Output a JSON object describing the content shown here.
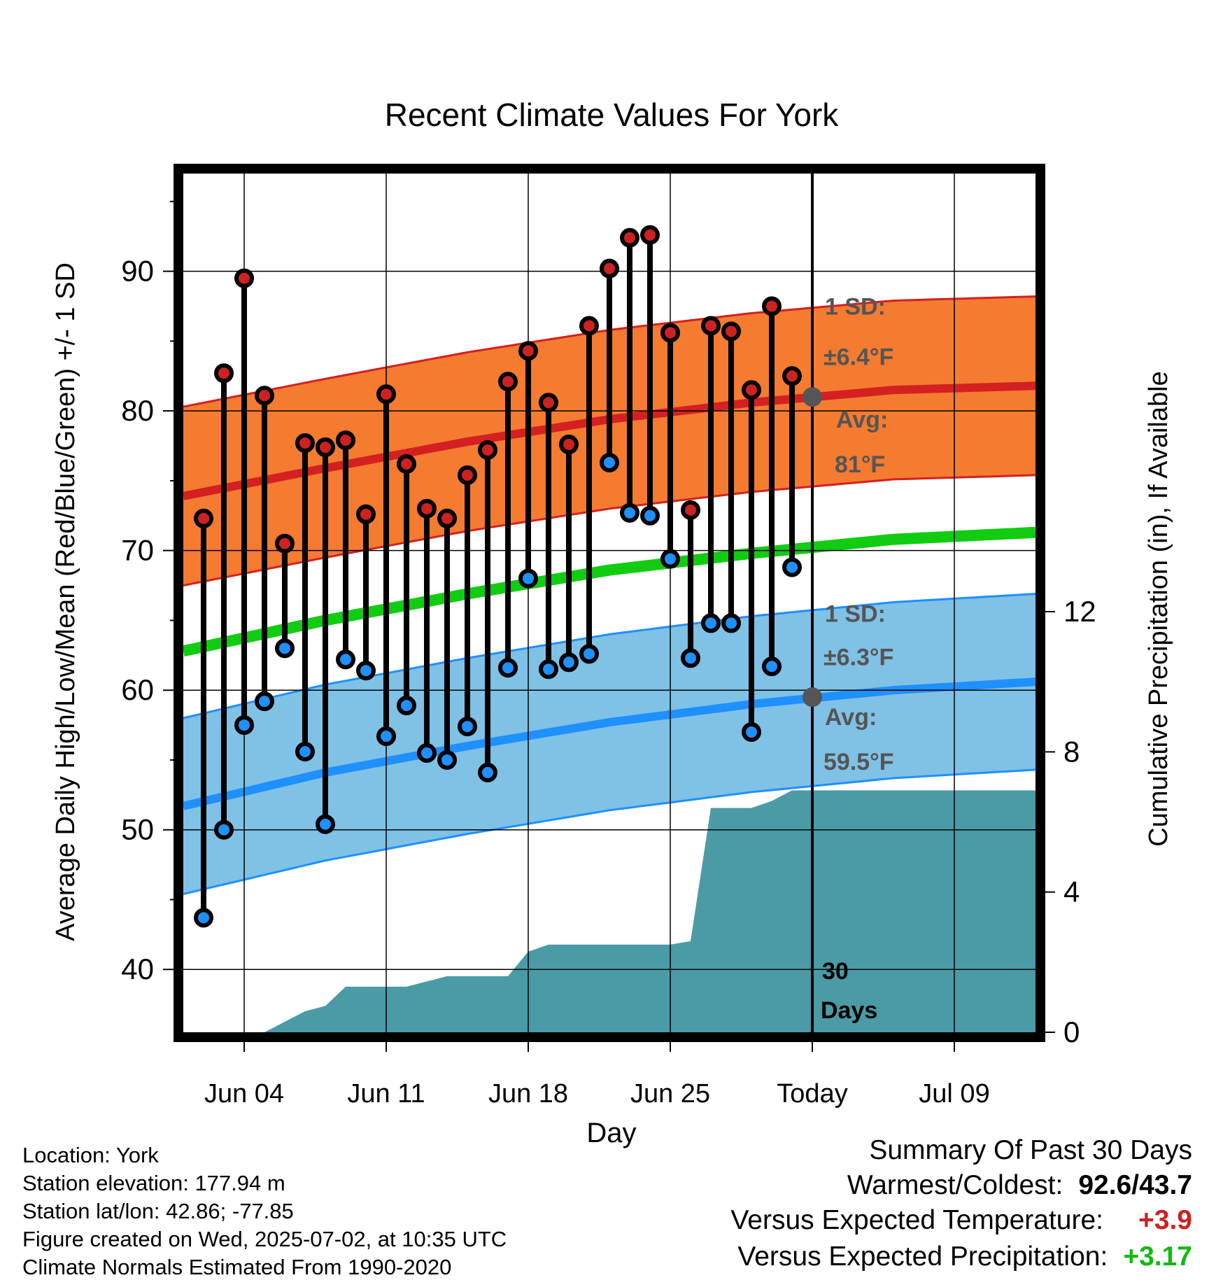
{
  "chart_data": {
    "type": "line",
    "title": "Recent Climate Values For York",
    "xlabel": "Day",
    "ylabel": "Average Daily High/Low/Mean (Red/Blue/Green) +/- 1 SD",
    "y2label": "Cumulative Precipitation (in), If Available",
    "x_range_days": [
      0,
      42
    ],
    "ylim": [
      35.5,
      97
    ],
    "y2lim": [
      0,
      24.5
    ],
    "x_ticks": [
      {
        "day": 3,
        "label": "Jun 04"
      },
      {
        "day": 10,
        "label": "Jun 11"
      },
      {
        "day": 17,
        "label": "Jun 18"
      },
      {
        "day": 24,
        "label": "Jun 25"
      },
      {
        "day": 31,
        "label": "Today"
      },
      {
        "day": 38,
        "label": "Jul 09"
      }
    ],
    "y_ticks": [
      40,
      50,
      60,
      70,
      80,
      90
    ],
    "y_ticks_labels": [
      "40",
      "50",
      "60",
      "70",
      "80",
      "90"
    ],
    "y2_ticks": [
      0,
      4,
      8,
      12
    ],
    "y2_ticks_labels": [
      "0",
      "4",
      "8",
      "12"
    ],
    "grid": true,
    "today_day": 31,
    "days": [
      1,
      2,
      3,
      4,
      5,
      6,
      7,
      8,
      9,
      10,
      11,
      12,
      13,
      14,
      15,
      16,
      17,
      18,
      19,
      20,
      21,
      22,
      23,
      24,
      25,
      26,
      27,
      28,
      29,
      30
    ],
    "highs": [
      72.3,
      82.7,
      89.5,
      81.1,
      70.5,
      77.7,
      77.4,
      77.9,
      72.6,
      81.2,
      76.2,
      73.0,
      72.3,
      75.4,
      77.2,
      82.1,
      84.3,
      80.6,
      77.6,
      86.1,
      90.2,
      92.4,
      92.6,
      85.6,
      72.9,
      86.1,
      85.7,
      81.5,
      87.5,
      82.5
    ],
    "lows": [
      43.7,
      50.0,
      57.5,
      59.2,
      63.0,
      55.6,
      50.4,
      62.2,
      61.4,
      56.7,
      58.9,
      55.5,
      55.0,
      57.4,
      54.1,
      61.6,
      68.0,
      61.5,
      62.0,
      62.6,
      76.3,
      72.7,
      72.5,
      69.4,
      62.3,
      64.8,
      64.8,
      57.0,
      61.7,
      68.8
    ],
    "normal_days": [
      0,
      7,
      14,
      21,
      28,
      35,
      42
    ],
    "normal_high": [
      73.9,
      75.9,
      77.8,
      79.4,
      80.6,
      81.5,
      81.8
    ],
    "normal_high_sd": 6.4,
    "normal_low": [
      51.7,
      54.1,
      56.0,
      57.7,
      59.0,
      60.0,
      60.6
    ],
    "normal_low_sd": 6.3,
    "normal_mean": [
      62.8,
      65.0,
      66.9,
      68.6,
      69.8,
      70.8,
      71.3
    ],
    "precip_days": [
      0,
      4,
      6,
      7,
      8,
      9,
      10,
      11,
      12,
      13,
      14,
      15,
      16,
      17,
      18,
      19,
      20,
      21,
      22,
      23,
      24,
      25,
      26,
      27,
      28,
      29,
      30,
      31,
      42
    ],
    "precip_cum": [
      0,
      0,
      0.6,
      0.75,
      1.3,
      1.3,
      1.3,
      1.3,
      1.45,
      1.6,
      1.6,
      1.6,
      1.6,
      2.3,
      2.5,
      2.5,
      2.5,
      2.5,
      2.5,
      2.5,
      2.5,
      2.6,
      6.4,
      6.4,
      6.4,
      6.6,
      6.9,
      6.9,
      6.9
    ],
    "annotations": {
      "high_sd_title": "1 SD:",
      "high_sd_value": "±6.4°F",
      "high_avg_title": "Avg:",
      "high_avg_value": "81°F",
      "high_avg_point": 81.0,
      "low_sd_title": "1 SD:",
      "low_sd_value": "±6.3°F",
      "low_avg_title": "Avg:",
      "low_avg_value": "59.5°F",
      "low_avg_point": 59.5,
      "days_number": "30",
      "days_word": "Days"
    },
    "colors": {
      "high_band": "#f47b30",
      "high_line": "#d42020",
      "low_band": "#80c1e6",
      "low_line": "#1e90ff",
      "mean_line": "#11cc11",
      "precip": "#4a9ba6",
      "high_marker": "#cc2222",
      "low_marker": "#1e90ff",
      "annotation": "#555555"
    }
  },
  "footer": {
    "location": "Location: York",
    "elevation": "Station elevation: 177.94 m",
    "latlon": "Station lat/lon: 42.86; -77.85",
    "created": "Figure created on Wed, 2025-07-02, at 10:35 UTC",
    "normals": "Climate Normals Estimated From 1990-2020"
  },
  "summary": {
    "title": "Summary Of Past 30 Days",
    "warm_label": "Warmest/Coldest:",
    "warm_value": "92.6/43.7",
    "temp_label": "Versus Expected Temperature:",
    "temp_value": "+3.9",
    "precip_label": "Versus Expected Precipitation:",
    "precip_value": "+3.17"
  }
}
